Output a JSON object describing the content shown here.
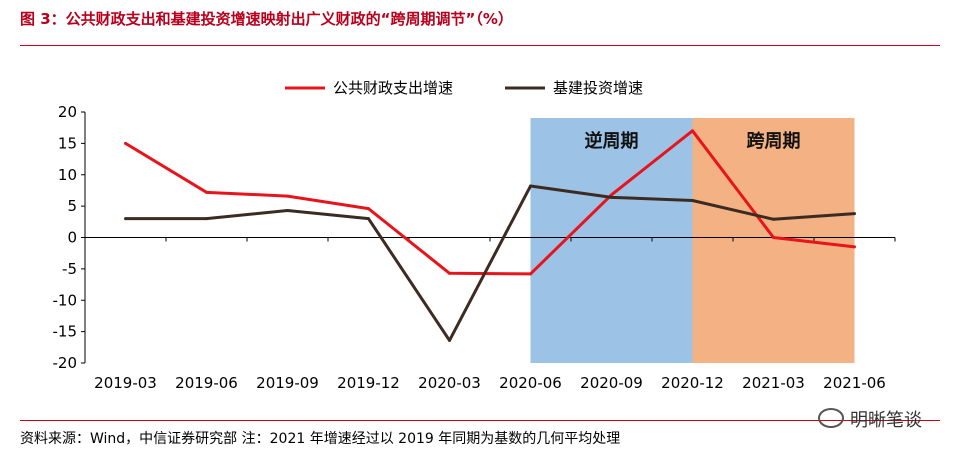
{
  "header": {
    "title": "图 3：公共财政支出和基建投资增速映射出广义财政的“跨周期调节”（%）"
  },
  "footer": {
    "source": "资料来源：Wind，中信证券研究部  注：2021 年增速经过以 2019 年同期为基数的几何平均处理",
    "watermark": "明晰笔谈"
  },
  "chart_data": {
    "type": "line",
    "title": "",
    "xlabel": "",
    "ylabel": "",
    "categories": [
      "2019-03",
      "2019-06",
      "2019-09",
      "2019-12",
      "2020-03",
      "2020-06",
      "2020-09",
      "2020-12",
      "2021-03",
      "2021-06"
    ],
    "ylim": [
      -20,
      20
    ],
    "yticks": [
      20,
      15,
      10,
      5,
      0,
      -5,
      -10,
      -15,
      -20
    ],
    "legend_position": "top",
    "series": [
      {
        "name": "公共财政支出增速",
        "color": "#e8141c",
        "values": [
          15,
          7.2,
          6.6,
          4.6,
          -5.7,
          -5.8,
          6.8,
          17,
          0,
          -1.5
        ]
      },
      {
        "name": "基建投资增速",
        "color": "#3b2b22",
        "values": [
          3,
          3,
          4.3,
          3,
          -16.4,
          8.2,
          6.4,
          5.9,
          2.9,
          3.8
        ]
      }
    ],
    "regions": [
      {
        "label": "逆周期",
        "from": "2020-06",
        "to": "2020-12",
        "color": "#9cc3e6"
      },
      {
        "label": "跨周期",
        "from": "2020-12",
        "to": "2021-06",
        "color": "#f4b183"
      }
    ]
  }
}
